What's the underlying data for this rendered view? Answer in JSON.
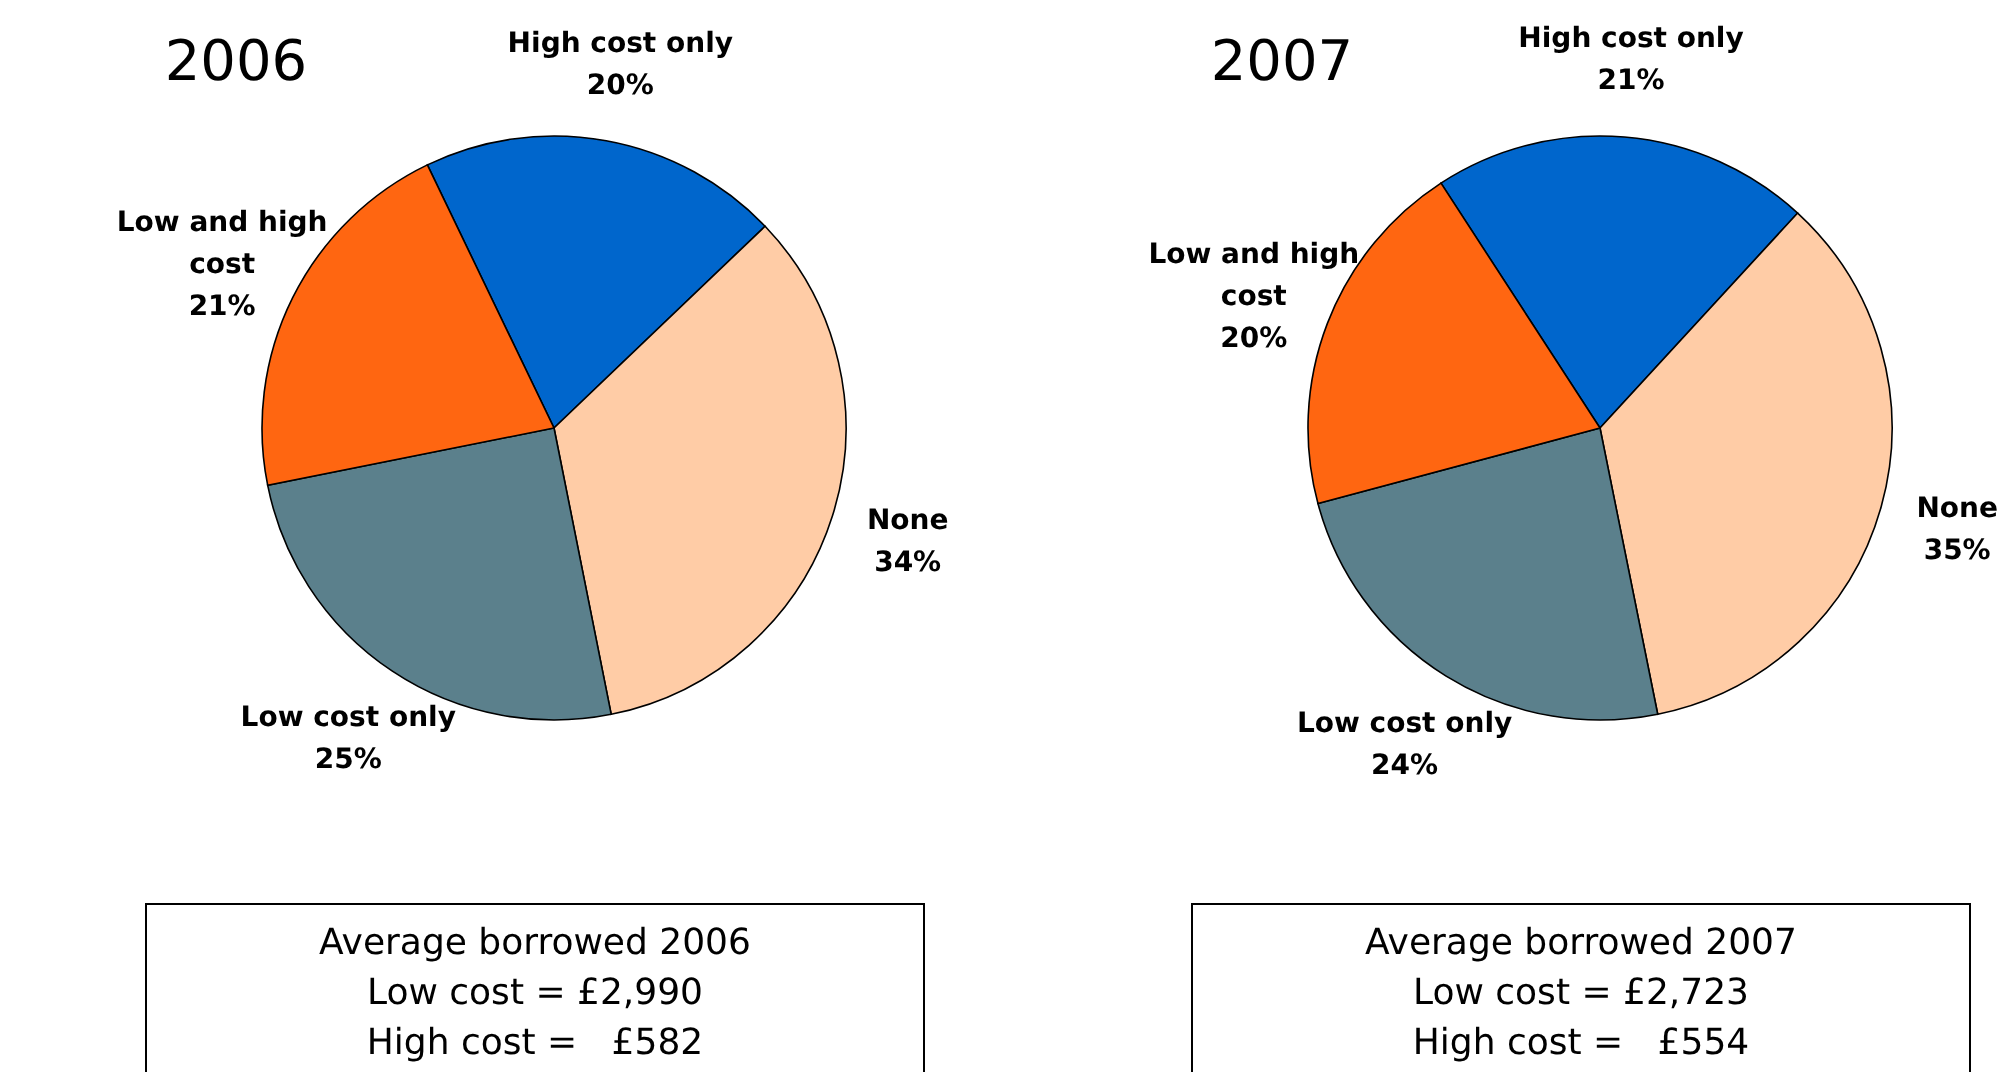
{
  "chart_data": [
    {
      "type": "pie",
      "title": "2006",
      "categories": [
        "High cost only",
        "None",
        "Low cost only",
        "Low and high cost"
      ],
      "values": [
        20,
        34,
        25,
        21
      ],
      "colors": [
        "#0066cc",
        "#ffcca6",
        "#5b808c",
        "#ff6611"
      ],
      "value_labels": [
        "20%",
        "34%",
        "25%",
        "21%"
      ],
      "annotations": [
        "Average borrowed 2006",
        "Low cost = £2,990",
        "High cost =   £582"
      ]
    },
    {
      "type": "pie",
      "title": "2007",
      "categories": [
        "High cost only",
        "None",
        "Low cost only",
        "Low and high cost"
      ],
      "values": [
        21,
        35,
        24,
        20
      ],
      "colors": [
        "#0066cc",
        "#ffcca6",
        "#5b808c",
        "#ff6611"
      ],
      "value_labels": [
        "21%",
        "35%",
        "24%",
        "20%"
      ],
      "annotations": [
        "Average borrowed 2007",
        "Low cost = £2,723",
        "High cost =   £554"
      ]
    }
  ]
}
